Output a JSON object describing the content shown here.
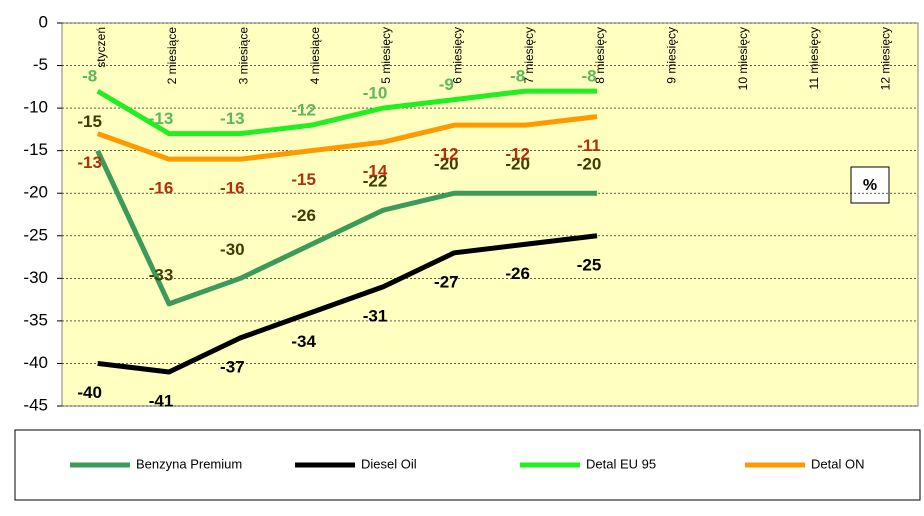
{
  "chart_data": {
    "type": "line",
    "categories": [
      "styczeń",
      "2 miesiące",
      "3 miesiące",
      "4 miesiące",
      "5 miesięcy",
      "6 miesięcy",
      "7 miesięcy",
      "8 miesięcy",
      "9 miesięcy",
      "10 miesięcy",
      "11 miesięcy",
      "12 miesięcy"
    ],
    "series": [
      {
        "name": "Benzyna Premium",
        "color": "#3c9b5a",
        "label_color": "#3d3d00",
        "values": [
          -15,
          -33,
          -30,
          -26,
          -22,
          -20,
          -20,
          -20,
          null,
          null,
          null,
          null
        ]
      },
      {
        "name": "Diesel Oil",
        "color": "#000000",
        "label_color": "#000000",
        "values": [
          -40,
          -41,
          -37,
          -34,
          -31,
          -27,
          -26,
          -25,
          null,
          null,
          null,
          null
        ]
      },
      {
        "name": "Detal EU 95",
        "color": "#22ee22",
        "label_color": "#5cb85c",
        "values": [
          -8,
          -13,
          -13,
          -12,
          -10,
          -9,
          -8,
          -8,
          null,
          null,
          null,
          null
        ]
      },
      {
        "name": "Detal ON",
        "color": "#ff9900",
        "label_color": "#b3300a",
        "values": [
          -13,
          -16,
          -16,
          -15,
          -14,
          -12,
          -12,
          -11,
          null,
          null,
          null,
          null
        ]
      }
    ],
    "ylim": [
      -45,
      0
    ],
    "yticks": [
      -45,
      -40,
      -35,
      -30,
      -25,
      -20,
      -15,
      -10,
      -5,
      0
    ],
    "grid": true,
    "legend": "bottom",
    "unit_box": "%"
  }
}
